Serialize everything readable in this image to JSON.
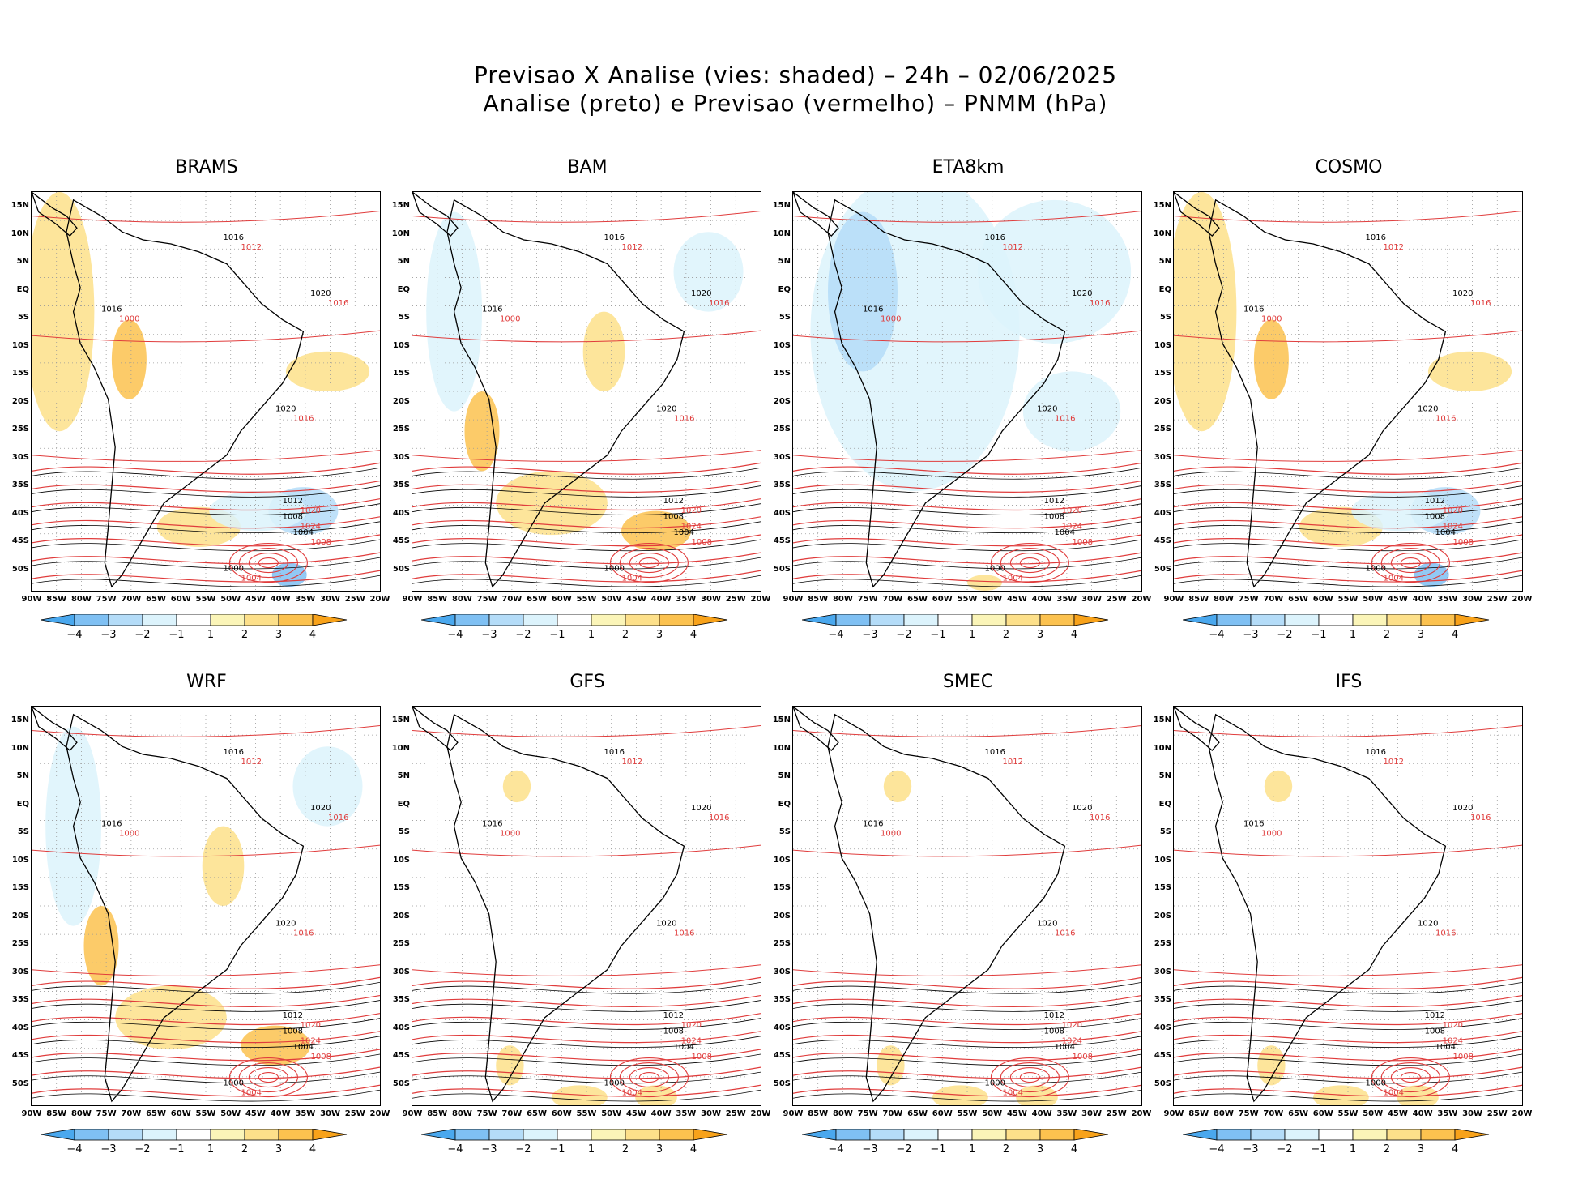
{
  "header": {
    "line1": "Previsao X Analise (vies: shaded) – 24h – 02/06/2025",
    "line2": "Analise (preto) e Previsao (vermelho) – PNMM (hPa)"
  },
  "panels": [
    {
      "name": "BRAMS",
      "bias": "warm"
    },
    {
      "name": "BAM",
      "bias": "mixed"
    },
    {
      "name": "ETA8km",
      "bias": "cold"
    },
    {
      "name": "COSMO",
      "bias": "warm"
    },
    {
      "name": "WRF",
      "bias": "mixed"
    },
    {
      "name": "GFS",
      "bias": "neutral"
    },
    {
      "name": "SMEC",
      "bias": "neutral"
    },
    {
      "name": "IFS",
      "bias": "neutral"
    }
  ],
  "axes": {
    "lat_labels": [
      "15N",
      "10N",
      "5N",
      "EQ",
      "5S",
      "10S",
      "15S",
      "20S",
      "25S",
      "30S",
      "35S",
      "40S",
      "45S",
      "50S"
    ],
    "lon_labels": [
      "90W",
      "85W",
      "80W",
      "75W",
      "70W",
      "65W",
      "60W",
      "55W",
      "50W",
      "45W",
      "40W",
      "35W",
      "30W",
      "25W",
      "20W"
    ]
  },
  "contour_labels": {
    "analysis": [
      "1016",
      "1020",
      "1012",
      "1008",
      "1004",
      "1000",
      "1016",
      "1020"
    ],
    "forecast": [
      "1012",
      "1016",
      "1020",
      "1024",
      "1008",
      "1004",
      "1000",
      "1016"
    ]
  },
  "colorbar": {
    "labels": [
      "−4",
      "−3",
      "−2",
      "−1",
      "1",
      "2",
      "3",
      "4"
    ],
    "colors": [
      "#4aa8ee",
      "#7fc0f3",
      "#b4dcf8",
      "#dcf3fc",
      "#ffffff",
      "#fbf5b8",
      "#fde08a",
      "#fcc24f",
      "#f8a21a"
    ]
  },
  "colors": {
    "analysis_contour": "#000000",
    "forecast_contour": "#e03c3c",
    "coast": "#000000"
  }
}
